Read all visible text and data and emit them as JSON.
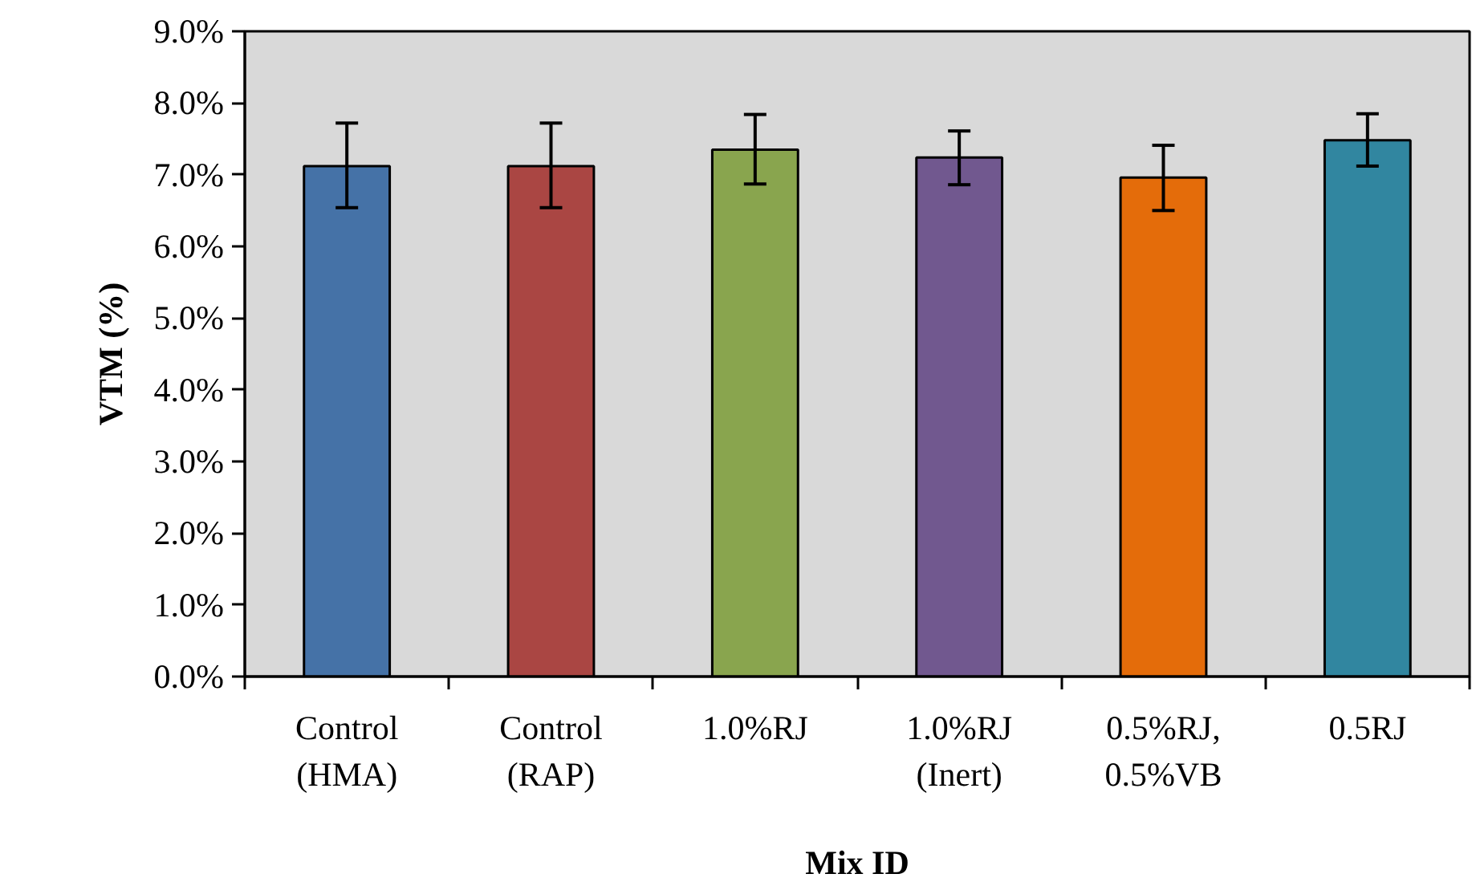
{
  "chart_data": {
    "type": "bar",
    "xlabel": "Mix ID",
    "ylabel": "VTM (%)",
    "categories": [
      "Control\n(HMA)",
      "Control\n(RAP)",
      "1.0%RJ",
      "1.0%RJ\n(Inert)",
      "0.5%RJ,\n0.5%VB",
      "0.5RJ"
    ],
    "values": [
      7.12,
      7.12,
      7.35,
      7.24,
      6.96,
      7.48
    ],
    "colors": [
      "#4572a7",
      "#aa4643",
      "#89a54e",
      "#71588f",
      "#e46c0a",
      "#3186a0"
    ],
    "errors": [
      [
        6.54,
        7.72
      ],
      [
        6.54,
        7.72
      ],
      [
        6.87,
        7.84
      ],
      [
        6.86,
        7.61
      ],
      [
        6.5,
        7.41
      ],
      [
        7.12,
        7.85
      ]
    ],
    "ylim": [
      0,
      9
    ],
    "yticks": [
      {
        "value": 0,
        "label": "0.0%"
      },
      {
        "value": 1,
        "label": "1.0%"
      },
      {
        "value": 2,
        "label": "2.0%"
      },
      {
        "value": 3,
        "label": "3.0%"
      },
      {
        "value": 4,
        "label": "4.0%"
      },
      {
        "value": 5,
        "label": "5.0%"
      },
      {
        "value": 6,
        "label": "6.0%"
      },
      {
        "value": 7,
        "label": "7.0%"
      },
      {
        "value": 8,
        "label": "8.0%"
      },
      {
        "value": 9,
        "label": "9.0%"
      }
    ],
    "grid": false
  }
}
